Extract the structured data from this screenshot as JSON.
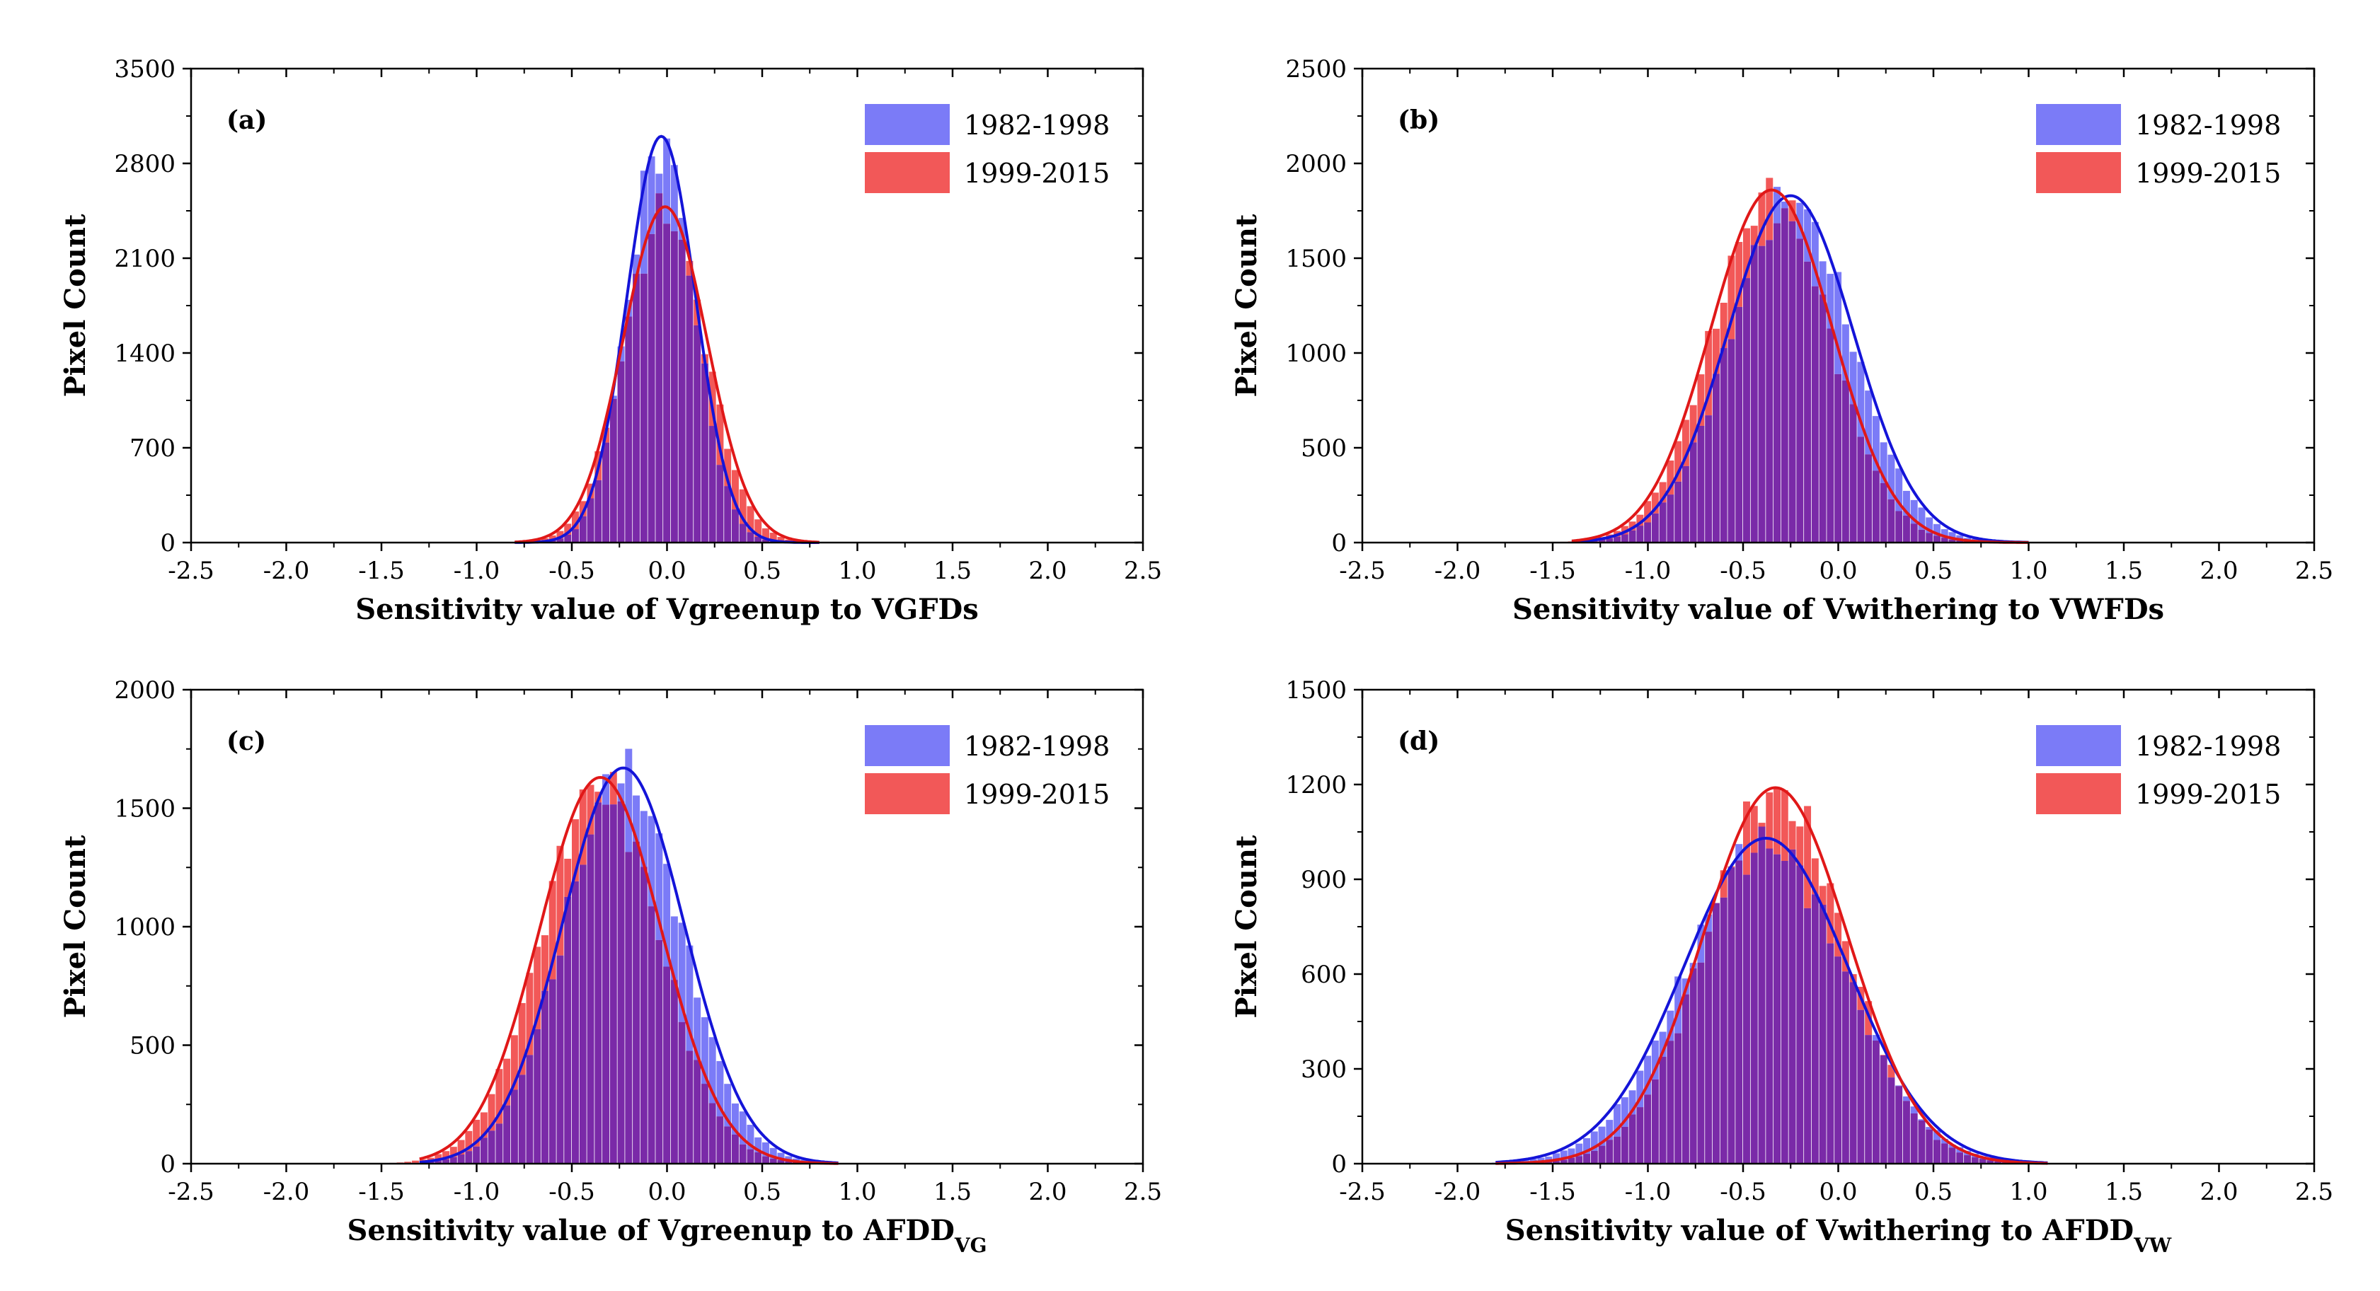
{
  "colors": {
    "series_1982_1998_fill": "#7b7bf7",
    "series_1982_1998_line": "#1414d8",
    "series_1999_2015_fill": "#f25858",
    "series_1999_2015_line": "#e01818",
    "overlap": "#7a2aa8",
    "axis": "#000000"
  },
  "chart_data": [
    {
      "type": "bar",
      "panel": "(a)",
      "xlabel": "Sensitivity value of Vgreenup to VGFDs",
      "xlabel_subscript": "",
      "ylabel": "Pixel Count",
      "xlim": [
        -2.5,
        2.5
      ],
      "ylim": [
        0,
        3500
      ],
      "xticks": [
        "-2.5",
        "-2.0",
        "-1.5",
        "-1.0",
        "-0.5",
        "0.0",
        "0.5",
        "1.0",
        "1.5",
        "2.0",
        "2.5"
      ],
      "yticks": [
        "0",
        "700",
        "1400",
        "2100",
        "2800",
        "3500"
      ],
      "legend_position": "top-right",
      "series": [
        {
          "name": "1982-1998",
          "fit_mean": -0.03,
          "fit_sd": 0.18,
          "fit_peak": 3000,
          "fit_range": [
            -0.8,
            0.8
          ]
        },
        {
          "name": "1999-2015",
          "fit_mean": -0.01,
          "fit_sd": 0.22,
          "fit_peak": 2480,
          "fit_range": [
            -0.8,
            0.8
          ]
        }
      ]
    },
    {
      "type": "bar",
      "panel": "(b)",
      "xlabel": "Sensitivity value of Vwithering to VWFDs",
      "xlabel_subscript": "",
      "ylabel": "Pixel Count",
      "xlim": [
        -2.5,
        2.5
      ],
      "ylim": [
        0,
        2500
      ],
      "xticks": [
        "-2.5",
        "-2.0",
        "-1.5",
        "-1.0",
        "-0.5",
        "0.0",
        "0.5",
        "1.0",
        "1.5",
        "2.0",
        "2.5"
      ],
      "yticks": [
        "0",
        "500",
        "1000",
        "1500",
        "2000",
        "2500"
      ],
      "legend_position": "top-right",
      "series": [
        {
          "name": "1982-1998",
          "fit_mean": -0.25,
          "fit_sd": 0.33,
          "fit_peak": 1830,
          "fit_range": [
            -1.4,
            1.0
          ]
        },
        {
          "name": "1999-2015",
          "fit_mean": -0.35,
          "fit_sd": 0.32,
          "fit_peak": 1860,
          "fit_range": [
            -1.4,
            1.0
          ]
        }
      ]
    },
    {
      "type": "bar",
      "panel": "(c)",
      "xlabel": "Sensitivity value of Vgreenup to AFDD",
      "xlabel_subscript": "VG",
      "ylabel": "Pixel Count",
      "xlim": [
        -2.5,
        2.5
      ],
      "ylim": [
        0,
        2000
      ],
      "xticks": [
        "-2.5",
        "-2.0",
        "-1.5",
        "-1.0",
        "-0.5",
        "0.0",
        "0.5",
        "1.0",
        "1.5",
        "2.0",
        "2.5"
      ],
      "yticks": [
        "0",
        "500",
        "1000",
        "1500",
        "2000"
      ],
      "legend_position": "top-right",
      "series": [
        {
          "name": "1982-1998",
          "fit_mean": -0.23,
          "fit_sd": 0.32,
          "fit_peak": 1670,
          "fit_range": [
            -1.3,
            0.9
          ]
        },
        {
          "name": "1999-2015",
          "fit_mean": -0.35,
          "fit_sd": 0.32,
          "fit_peak": 1630,
          "fit_range": [
            -1.3,
            0.9
          ]
        }
      ]
    },
    {
      "type": "bar",
      "panel": "(d)",
      "xlabel": "Sensitivity value of Vwithering to AFDD",
      "xlabel_subscript": "VW",
      "ylabel": "Pixel Count",
      "xlim": [
        -2.5,
        2.5
      ],
      "ylim": [
        0,
        1500
      ],
      "xticks": [
        "-2.5",
        "-2.0",
        "-1.5",
        "-1.0",
        "-0.5",
        "0.0",
        "0.5",
        "1.0",
        "1.5",
        "2.0",
        "2.5"
      ],
      "yticks": [
        "0",
        "300",
        "600",
        "900",
        "1200",
        "1500"
      ],
      "legend_position": "top-right",
      "series": [
        {
          "name": "1982-1998",
          "fit_mean": -0.38,
          "fit_sd": 0.43,
          "fit_peak": 1030,
          "fit_range": [
            -1.8,
            1.1
          ]
        },
        {
          "name": "1999-2015",
          "fit_mean": -0.33,
          "fit_sd": 0.38,
          "fit_peak": 1190,
          "fit_range": [
            -1.8,
            1.1
          ]
        }
      ]
    }
  ]
}
